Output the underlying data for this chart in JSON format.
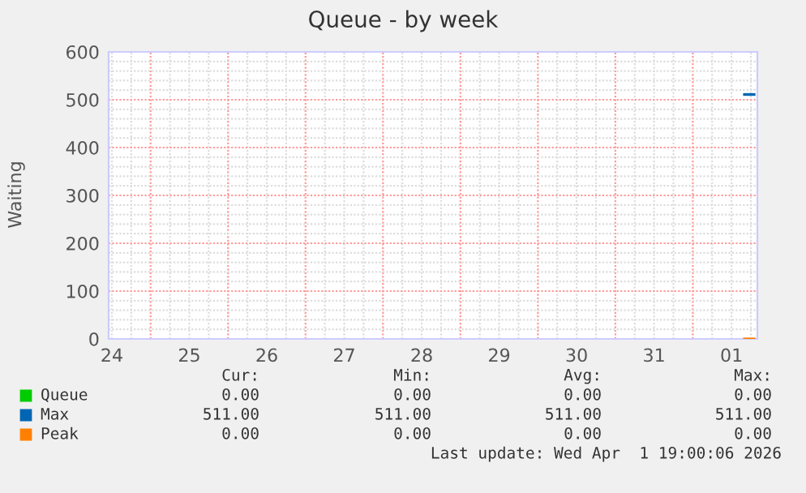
{
  "chart_data": {
    "type": "line",
    "title": "Queue - by week",
    "ylabel": "Waiting",
    "x": [
      "2026-04-01T16:00",
      "2026-04-01T19:00"
    ],
    "series": [
      {
        "name": "Queue",
        "color": "#00cc00",
        "values": [
          null,
          null
        ]
      },
      {
        "name": "Max",
        "color": "#0066b3",
        "values": [
          511,
          511
        ]
      },
      {
        "name": "Peak",
        "color": "#ff8000",
        "values": [
          0,
          0
        ]
      }
    ],
    "xlim": [
      "2026-03-24T11:00",
      "2026-04-01T20:00"
    ],
    "xticks": [
      {
        "value": "2026-03-24T12:00",
        "label": "24"
      },
      {
        "value": "2026-03-25T12:00",
        "label": "25"
      },
      {
        "value": "2026-03-26T12:00",
        "label": "26"
      },
      {
        "value": "2026-03-27T12:00",
        "label": "27"
      },
      {
        "value": "2026-03-28T12:00",
        "label": "28"
      },
      {
        "value": "2026-03-29T12:00",
        "label": "29"
      },
      {
        "value": "2026-03-30T12:00",
        "label": "30"
      },
      {
        "value": "2026-03-31T12:00",
        "label": "31"
      },
      {
        "value": "2026-04-01T12:00",
        "label": "01"
      }
    ],
    "ylim": [
      0,
      600
    ],
    "yticks": [
      0,
      100,
      200,
      300,
      400,
      500,
      600
    ],
    "grid": true,
    "legend": "bottom",
    "annotations": [
      "Cur:",
      "Min:",
      "Avg:",
      "Max:",
      "0.00",
      "0.00",
      "0.00",
      "0.00",
      "511.00",
      "511.00",
      "511.00",
      "511.00",
      "0.00",
      "0.00",
      "0.00",
      "0.00",
      "Last update: Wed Apr  1 19:00:06 2026"
    ]
  }
}
